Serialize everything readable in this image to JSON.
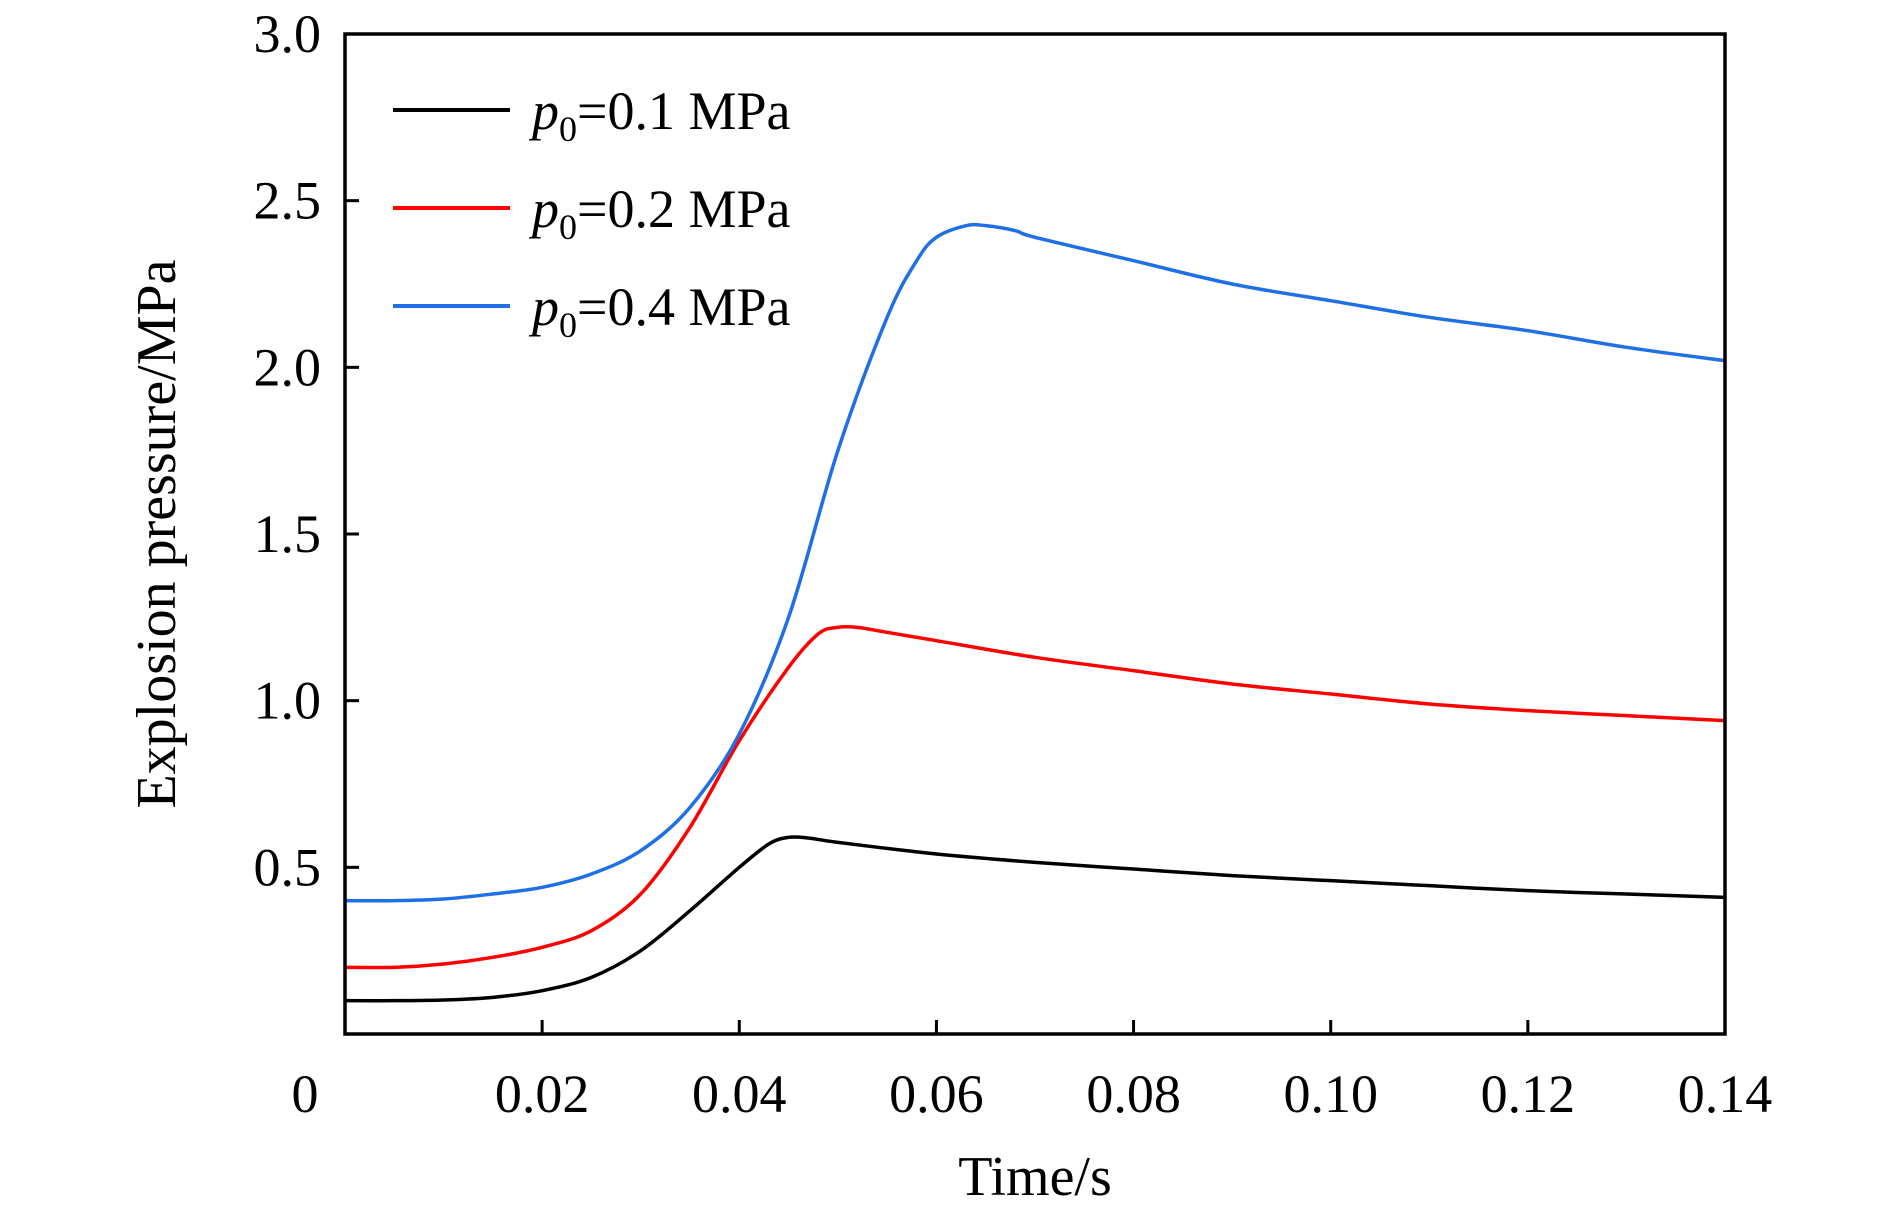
{
  "chart_data": {
    "type": "line",
    "xlabel": "Time/s",
    "ylabel": "Explosion pressure/MPa",
    "xlim": [
      0,
      0.14
    ],
    "ylim": [
      0,
      3.0
    ],
    "x_ticks": [
      {
        "value": 0,
        "label": "0"
      },
      {
        "value": 0.02,
        "label": "0.02"
      },
      {
        "value": 0.04,
        "label": "0.04"
      },
      {
        "value": 0.06,
        "label": "0.06"
      },
      {
        "value": 0.08,
        "label": "0.08"
      },
      {
        "value": 0.1,
        "label": "0.10"
      },
      {
        "value": 0.12,
        "label": "0.12"
      },
      {
        "value": 0.14,
        "label": "0.14"
      }
    ],
    "y_ticks": [
      {
        "value": 0.5,
        "label": "0.5"
      },
      {
        "value": 1.0,
        "label": "1.0"
      },
      {
        "value": 1.5,
        "label": "1.5"
      },
      {
        "value": 2.0,
        "label": "2.0"
      },
      {
        "value": 2.5,
        "label": "2.5"
      },
      {
        "value": 3.0,
        "label": "3.0"
      }
    ],
    "grid": false,
    "legend_position": "top-left",
    "series": [
      {
        "name": "p0=0.1 MPa",
        "legend": {
          "var": "p",
          "sub": "0",
          "rest": "=0.1 MPa"
        },
        "color": "#000000",
        "points": [
          [
            0,
            0.1
          ],
          [
            0.005,
            0.1
          ],
          [
            0.01,
            0.102
          ],
          [
            0.015,
            0.11
          ],
          [
            0.02,
            0.13
          ],
          [
            0.025,
            0.17
          ],
          [
            0.03,
            0.25
          ],
          [
            0.035,
            0.37
          ],
          [
            0.04,
            0.5
          ],
          [
            0.043,
            0.57
          ],
          [
            0.045,
            0.59
          ],
          [
            0.047,
            0.588
          ],
          [
            0.05,
            0.575
          ],
          [
            0.06,
            0.54
          ],
          [
            0.07,
            0.515
          ],
          [
            0.08,
            0.495
          ],
          [
            0.09,
            0.475
          ],
          [
            0.1,
            0.46
          ],
          [
            0.11,
            0.445
          ],
          [
            0.12,
            0.43
          ],
          [
            0.13,
            0.42
          ],
          [
            0.14,
            0.41
          ]
        ]
      },
      {
        "name": "p0=0.2 MPa",
        "legend": {
          "var": "p",
          "sub": "0",
          "rest": "=0.2 MPa"
        },
        "color": "#ff0000",
        "points": [
          [
            0,
            0.2
          ],
          [
            0.005,
            0.2
          ],
          [
            0.01,
            0.21
          ],
          [
            0.015,
            0.23
          ],
          [
            0.02,
            0.26
          ],
          [
            0.025,
            0.31
          ],
          [
            0.03,
            0.42
          ],
          [
            0.035,
            0.62
          ],
          [
            0.04,
            0.88
          ],
          [
            0.045,
            1.1
          ],
          [
            0.048,
            1.2
          ],
          [
            0.05,
            1.22
          ],
          [
            0.052,
            1.22
          ],
          [
            0.055,
            1.205
          ],
          [
            0.06,
            1.18
          ],
          [
            0.07,
            1.13
          ],
          [
            0.08,
            1.09
          ],
          [
            0.09,
            1.05
          ],
          [
            0.1,
            1.02
          ],
          [
            0.11,
            0.99
          ],
          [
            0.12,
            0.97
          ],
          [
            0.13,
            0.955
          ],
          [
            0.14,
            0.94
          ]
        ]
      },
      {
        "name": "p0=0.4 MPa",
        "legend": {
          "var": "p",
          "sub": "0",
          "rest": "=0.4 MPa"
        },
        "color": "#1f6fe6",
        "points": [
          [
            0,
            0.4
          ],
          [
            0.005,
            0.4
          ],
          [
            0.01,
            0.405
          ],
          [
            0.015,
            0.42
          ],
          [
            0.02,
            0.44
          ],
          [
            0.025,
            0.48
          ],
          [
            0.03,
            0.55
          ],
          [
            0.035,
            0.68
          ],
          [
            0.04,
            0.9
          ],
          [
            0.045,
            1.25
          ],
          [
            0.05,
            1.75
          ],
          [
            0.055,
            2.15
          ],
          [
            0.058,
            2.32
          ],
          [
            0.06,
            2.39
          ],
          [
            0.063,
            2.425
          ],
          [
            0.065,
            2.425
          ],
          [
            0.068,
            2.41
          ],
          [
            0.07,
            2.39
          ],
          [
            0.08,
            2.32
          ],
          [
            0.09,
            2.25
          ],
          [
            0.1,
            2.2
          ],
          [
            0.11,
            2.15
          ],
          [
            0.12,
            2.11
          ],
          [
            0.13,
            2.06
          ],
          [
            0.14,
            2.02
          ]
        ]
      }
    ]
  }
}
